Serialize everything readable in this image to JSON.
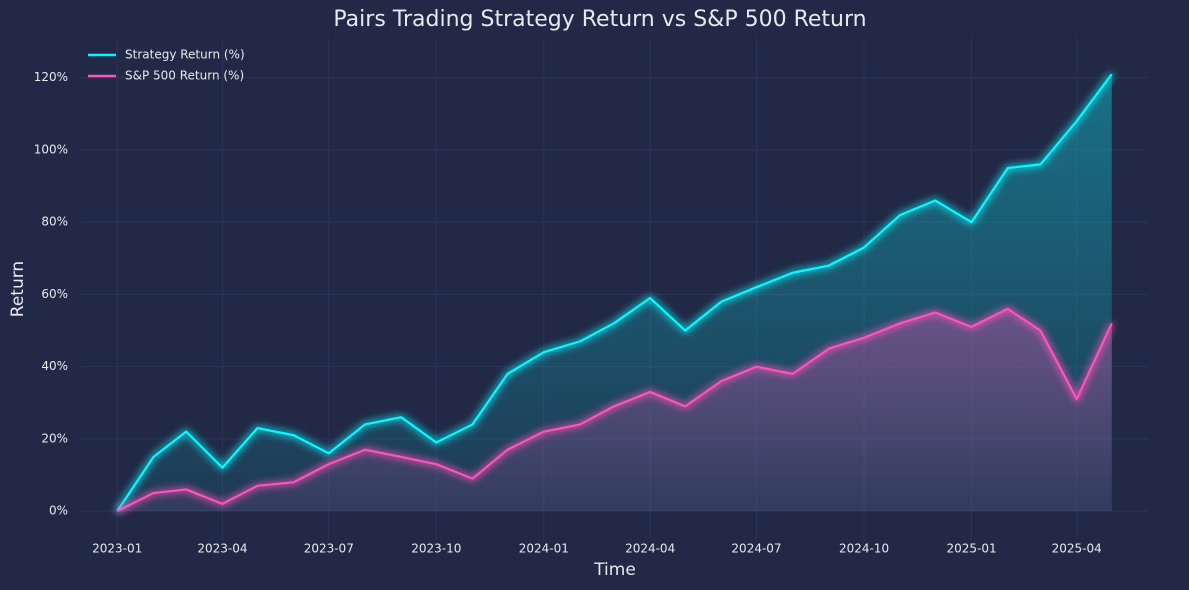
{
  "chart_data": {
    "type": "line",
    "title": "Pairs Trading Strategy Return vs S&P 500 Return",
    "x_label": "Time",
    "y_label": "Return",
    "x": [
      "2023-01",
      "2023-02",
      "2023-03",
      "2023-04",
      "2023-05",
      "2023-06",
      "2023-07",
      "2023-08",
      "2023-09",
      "2023-10",
      "2023-11",
      "2023-12",
      "2024-01",
      "2024-02",
      "2024-03",
      "2024-04",
      "2024-05",
      "2024-06",
      "2024-07",
      "2024-08",
      "2024-09",
      "2024-10",
      "2024-11",
      "2024-12",
      "2025-01",
      "2025-02",
      "2025-03",
      "2025-04",
      "2025-05"
    ],
    "series": [
      {
        "name": "Strategy Return (%)",
        "color": "#08F7FE",
        "values": [
          0,
          15,
          22,
          12,
          23,
          21,
          16,
          24,
          26,
          19,
          24,
          38,
          44,
          47,
          52,
          59,
          50,
          58,
          62,
          66,
          68,
          73,
          82,
          86,
          80,
          95,
          96,
          108,
          121
        ]
      },
      {
        "name": "S&P 500 Return (%)",
        "color": "#FE53BB",
        "values": [
          0,
          5,
          6,
          2,
          7,
          8,
          13,
          17,
          15,
          13,
          9,
          17,
          22,
          24,
          29,
          33,
          29,
          36,
          40,
          38,
          45,
          48,
          52,
          55,
          51,
          56,
          50,
          31,
          52
        ]
      }
    ],
    "xlim": [
      "2022-12",
      "2025-06"
    ],
    "xticks": [
      "2023-01",
      "2023-04",
      "2023-07",
      "2023-10",
      "2024-01",
      "2024-04",
      "2024-07",
      "2024-10",
      "2025-01",
      "2025-04"
    ],
    "ylim": [
      -8,
      131
    ],
    "yticks": [
      {
        "value": 0,
        "label": "0%"
      },
      {
        "value": 20,
        "label": "20%"
      },
      {
        "value": 40,
        "label": "40%"
      },
      {
        "value": 60,
        "label": "60%"
      },
      {
        "value": 80,
        "label": "80%"
      },
      {
        "value": 100,
        "label": "100%"
      },
      {
        "value": 120,
        "label": "120%"
      }
    ],
    "grid": true,
    "legend": "upper left",
    "background": "#212946"
  }
}
